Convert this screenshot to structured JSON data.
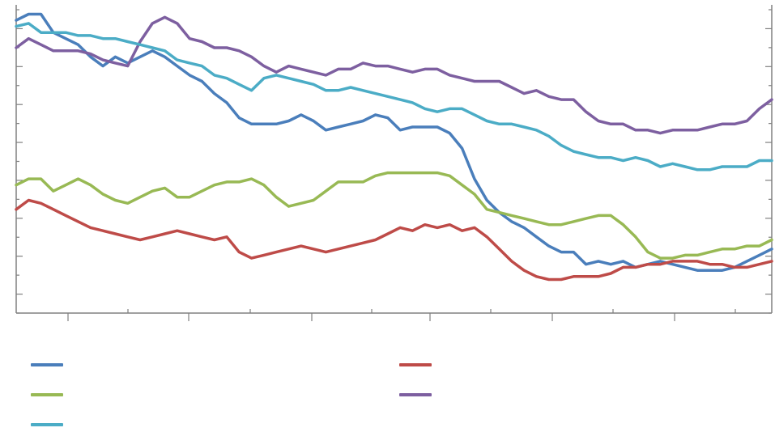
{
  "chart_data": {
    "type": "line",
    "title": "",
    "xlabel": "",
    "ylabel": "",
    "x_tick_labels": [],
    "y_tick_labels": [],
    "x": [
      0,
      1,
      2,
      3,
      4,
      5,
      6,
      7,
      8,
      9,
      10,
      11,
      12,
      13,
      14,
      15,
      16,
      17,
      18,
      19,
      20,
      21,
      22,
      23,
      24,
      25,
      26,
      27,
      28,
      29,
      30,
      31,
      32,
      33,
      34,
      35,
      36,
      37,
      38,
      39,
      40,
      41,
      42,
      43,
      44,
      45,
      46,
      47,
      48,
      49,
      50,
      51,
      52,
      53,
      54,
      55,
      56,
      57,
      58,
      59,
      60,
      61
    ],
    "xlim": [
      0,
      61
    ],
    "ylim": [
      0,
      100
    ],
    "grid": false,
    "legend_position": "bottom",
    "series": [
      {
        "color": "#4a7ebb",
        "values": [
          96,
          98,
          98,
          92,
          90,
          88,
          84,
          81,
          84,
          82,
          84,
          86,
          84,
          81,
          78,
          76,
          72,
          69,
          64,
          62,
          62,
          62,
          63,
          65,
          63,
          60,
          61,
          62,
          63,
          65,
          64,
          60,
          61,
          61,
          61,
          59,
          54,
          44,
          37,
          33,
          30,
          28,
          25,
          22,
          20,
          20,
          16,
          17,
          16,
          17,
          15,
          16,
          17,
          16,
          15,
          14,
          14,
          14,
          15,
          17,
          19,
          21
        ]
      },
      {
        "color": "#be4b48",
        "values": [
          34,
          37,
          36,
          34,
          32,
          30,
          28,
          27,
          26,
          25,
          24,
          25,
          26,
          27,
          26,
          25,
          24,
          25,
          20,
          18,
          19,
          20,
          21,
          22,
          21,
          20,
          21,
          22,
          23,
          24,
          26,
          28,
          27,
          29,
          28,
          29,
          27,
          28,
          25,
          21,
          17,
          14,
          12,
          11,
          11,
          12,
          12,
          12,
          13,
          15,
          15,
          16,
          16,
          17,
          17,
          17,
          16,
          16,
          15,
          15,
          16,
          17
        ]
      },
      {
        "color": "#98b954",
        "values": [
          42,
          44,
          44,
          40,
          42,
          44,
          42,
          39,
          37,
          36,
          38,
          40,
          41,
          38,
          38,
          40,
          42,
          43,
          43,
          44,
          42,
          38,
          35,
          36,
          37,
          40,
          43,
          43,
          43,
          45,
          46,
          46,
          46,
          46,
          46,
          45,
          42,
          39,
          34,
          33,
          32,
          31,
          30,
          29,
          29,
          30,
          31,
          32,
          32,
          29,
          25,
          20,
          18,
          18,
          19,
          19,
          20,
          21,
          21,
          22,
          22,
          24
        ]
      },
      {
        "color": "#7d5fa0",
        "values": [
          87,
          90,
          88,
          86,
          86,
          86,
          85,
          83,
          82,
          81,
          89,
          95,
          97,
          95,
          90,
          89,
          87,
          87,
          86,
          84,
          81,
          79,
          81,
          80,
          79,
          78,
          80,
          80,
          82,
          81,
          81,
          80,
          79,
          80,
          80,
          78,
          77,
          76,
          76,
          76,
          74,
          72,
          73,
          71,
          70,
          70,
          66,
          63,
          62,
          62,
          60,
          60,
          59,
          60,
          60,
          60,
          61,
          62,
          62,
          63,
          67,
          70
        ]
      },
      {
        "color": "#4bacc6",
        "values": [
          94,
          95,
          92,
          92,
          92,
          91,
          91,
          90,
          90,
          89,
          88,
          87,
          86,
          83,
          82,
          81,
          78,
          77,
          75,
          73,
          77,
          78,
          77,
          76,
          75,
          73,
          73,
          74,
          73,
          72,
          71,
          70,
          69,
          67,
          66,
          67,
          67,
          65,
          63,
          62,
          62,
          61,
          60,
          58,
          55,
          53,
          52,
          51,
          51,
          50,
          51,
          50,
          48,
          49,
          48,
          47,
          47,
          48,
          48,
          48,
          50,
          50
        ]
      }
    ]
  },
  "colors": {
    "axis": "#808080",
    "series_blue": "#4a7ebb",
    "series_red": "#be4b48",
    "series_green": "#98b954",
    "series_purple": "#7d5fa0",
    "series_cyan": "#4bacc6"
  }
}
